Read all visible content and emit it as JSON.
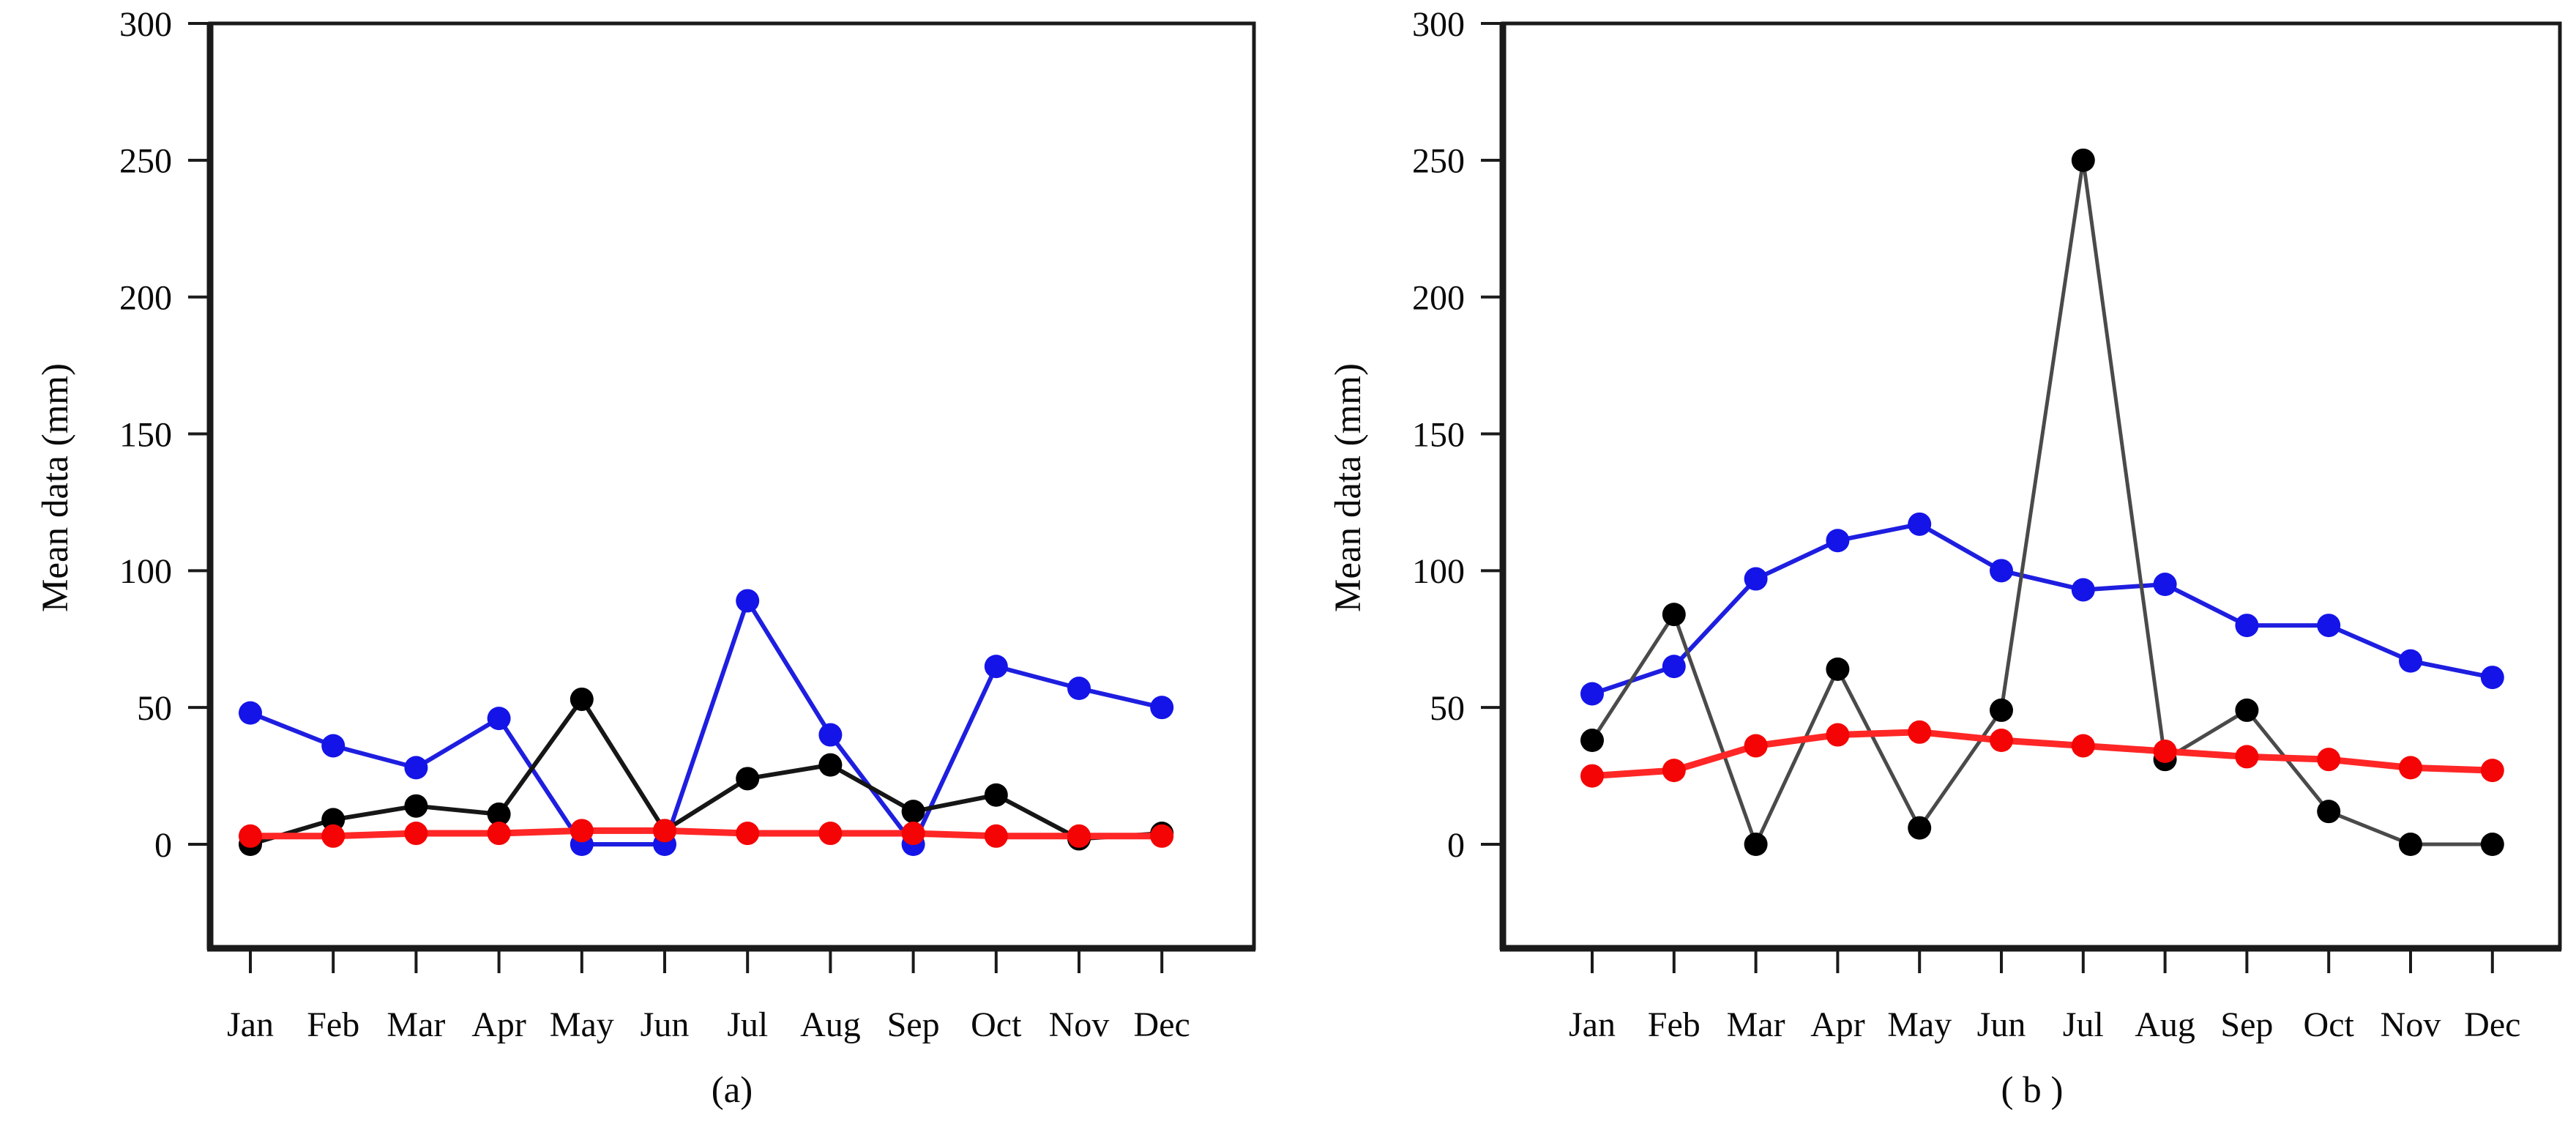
{
  "figure": {
    "background": "#ffffff",
    "text_color": "#0a0a0a",
    "axis_color": "#1a1a1a"
  },
  "chart_data": [
    {
      "type": "line",
      "caption": "(a)",
      "ylabel": "Mean data (mm)",
      "xlabel": "",
      "categories": [
        "Jan",
        "Feb",
        "Mar",
        "Apr",
        "May",
        "Jun",
        "Jul",
        "Aug",
        "Sep",
        "Oct",
        "Nov",
        "Dec"
      ],
      "yticks": [
        0,
        50,
        100,
        150,
        200,
        250,
        300
      ],
      "ylim": [
        -38,
        300
      ],
      "grid": false,
      "legend_visible": false,
      "series": [
        {
          "name": "blue",
          "color": "#1414e8",
          "line_color": "#1e1ee0",
          "line_width": 6,
          "values": [
            48,
            36,
            28,
            46,
            0,
            0,
            89,
            40,
            0,
            65,
            57,
            50
          ]
        },
        {
          "name": "black",
          "color": "#000000",
          "line_color": "#161616",
          "line_width": 6,
          "values": [
            0,
            9,
            14,
            11,
            53,
            5,
            24,
            29,
            12,
            18,
            2,
            4
          ]
        },
        {
          "name": "red",
          "color": "#f40404",
          "line_color": "#ff2626",
          "line_width": 9,
          "values": [
            3,
            3,
            4,
            4,
            5,
            5,
            4,
            4,
            4,
            3,
            3,
            3
          ]
        }
      ]
    },
    {
      "type": "line",
      "caption": "( b )",
      "ylabel": "Mean data (mm)",
      "xlabel": "",
      "categories": [
        "Jan",
        "Feb",
        "Mar",
        "Apr",
        "May",
        "Jun",
        "Jul",
        "Aug",
        "Sep",
        "Oct",
        "Nov",
        "Dec"
      ],
      "yticks": [
        0,
        50,
        100,
        150,
        200,
        250,
        300
      ],
      "ylim": [
        -38,
        300
      ],
      "grid": false,
      "legend_visible": false,
      "series": [
        {
          "name": "blue",
          "color": "#1414e8",
          "line_color": "#1e1ee0",
          "line_width": 6,
          "values": [
            55,
            65,
            97,
            111,
            117,
            100,
            93,
            95,
            80,
            80,
            67,
            61
          ]
        },
        {
          "name": "black",
          "color": "#000000",
          "line_color": "#4a4a4a",
          "line_width": 5,
          "values": [
            38,
            84,
            0,
            64,
            6,
            49,
            250,
            31,
            49,
            12,
            0,
            0
          ]
        },
        {
          "name": "red",
          "color": "#f40404",
          "line_color": "#ff2626",
          "line_width": 9,
          "values": [
            25,
            27,
            36,
            40,
            41,
            38,
            36,
            34,
            32,
            31,
            28,
            27
          ]
        }
      ]
    }
  ]
}
